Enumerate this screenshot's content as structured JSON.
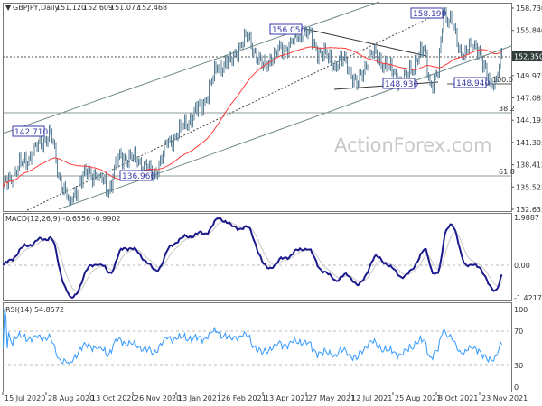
{
  "header": {
    "symbol": "GBPJPY,Daily",
    "open": "151.120",
    "high": "152.609",
    "low": "151.077",
    "close": "152.468"
  },
  "watermark": "ActionForex.com",
  "colors": {
    "bars": "#5b7f95",
    "ma": "#ff3b3b",
    "macd": "#1a1a8c",
    "signal": "#c8c8c8",
    "rsi": "#3399ff",
    "label": "#3a3aa8"
  },
  "chart_data": [
    {
      "type": "line",
      "title": "GBPJPY,Daily",
      "subtype": "ohlc",
      "y_ticks": [
        "158.730",
        "155.840",
        "149.975",
        "147.085",
        "144.195",
        "141.305",
        "138.415",
        "135.525",
        "132.635"
      ],
      "ylim": [
        132.635,
        158.73
      ],
      "current_price": "152.350",
      "x_ticks": [
        "15 Jul 2020",
        "28 Aug 2020",
        "13 Oct 2020",
        "26 Nov 2020",
        "13 Jan 2021",
        "26 Feb 2021",
        "13 Apr 2021",
        "27 May 2021",
        "12 Jul 2021",
        "25 Aug 2021",
        "8 Oct 2021",
        "23 Nov 2021"
      ],
      "waypoints_bar_price": [
        [
          0,
          135.5
        ],
        [
          11,
          138
        ],
        [
          25,
          140.5
        ],
        [
          35,
          142.7
        ],
        [
          41,
          137
        ],
        [
          49,
          133.5
        ],
        [
          61,
          137.5
        ],
        [
          71,
          137
        ],
        [
          78,
          135
        ],
        [
          85,
          139.5
        ],
        [
          101,
          139
        ],
        [
          111,
          136.96
        ],
        [
          121,
          141
        ],
        [
          131,
          143
        ],
        [
          148,
          146.5
        ],
        [
          158,
          151
        ],
        [
          168,
          152
        ],
        [
          175,
          154
        ],
        [
          181,
          155
        ],
        [
          191,
          151
        ],
        [
          201,
          153
        ],
        [
          211,
          154
        ],
        [
          223,
          156.05
        ],
        [
          231,
          153.5
        ],
        [
          245,
          151.5
        ],
        [
          253,
          152
        ],
        [
          261,
          148.5
        ],
        [
          271,
          153
        ],
        [
          285,
          151
        ],
        [
          295,
          149
        ],
        [
          305,
          152
        ],
        [
          311,
          153.5
        ],
        [
          315,
          148.9
        ],
        [
          321,
          150
        ],
        [
          325,
          158.19
        ],
        [
          331,
          157
        ],
        [
          335,
          154
        ],
        [
          339,
          152.5
        ],
        [
          345,
          154
        ],
        [
          351,
          153.5
        ],
        [
          358,
          149
        ],
        [
          363,
          149.5
        ],
        [
          368,
          152.47
        ]
      ],
      "annotations": {
        "swing_labels": [
          "142.710",
          "136.960",
          "156.050",
          "148.930",
          "158.190",
          "148.940"
        ],
        "fib_labels": [
          "38.2",
          "61.8",
          "100.0"
        ]
      },
      "ma_period": 50
    },
    {
      "type": "line",
      "title": "MACD(12,26,9) -0.6556 -0.9902",
      "y_ticks": [
        "1.9887",
        "0.00",
        "-1.4217"
      ],
      "ylim": [
        -1.4217,
        1.9887
      ]
    },
    {
      "type": "line",
      "title": "RSI(14) 54.8572",
      "y_ticks": [
        "100",
        "70",
        "30",
        "0"
      ],
      "ylim": [
        0,
        100
      ]
    }
  ]
}
